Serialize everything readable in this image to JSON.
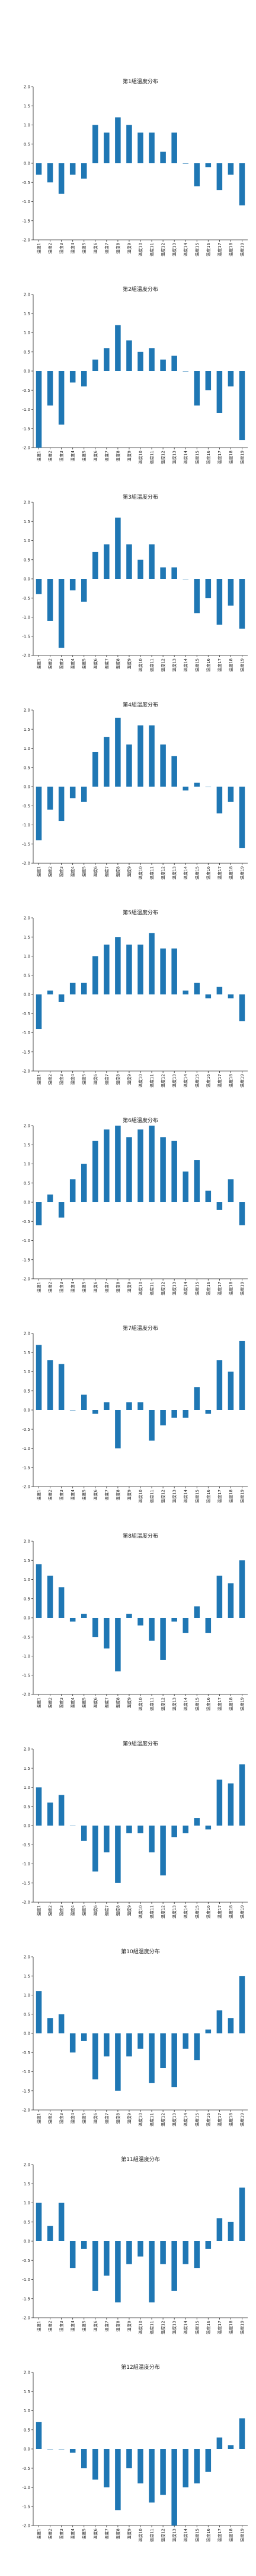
{
  "chart_data": [
    {
      "type": "bar",
      "title": "第1組温度分布",
      "categories": [
        "温度1",
        "温度2",
        "温度3",
        "温度4",
        "温度5",
        "温度6",
        "温度7",
        "温度8",
        "温度9",
        "温度10",
        "温度11",
        "温度12",
        "温度13",
        "温度14",
        "温度15",
        "温度16",
        "温度17",
        "温度18",
        "温度19"
      ],
      "values": [
        -0.3,
        -0.5,
        -0.8,
        -0.3,
        -0.4,
        1.0,
        0.8,
        1.2,
        1.0,
        0.8,
        0.8,
        0.3,
        0.8,
        0.0,
        -0.6,
        -0.1,
        -0.7,
        -0.3,
        -1.1
      ],
      "ylim": [
        -2.0,
        2.0
      ],
      "yticks": [
        -2.0,
        -1.5,
        -1.0,
        -0.5,
        0.0,
        0.5,
        1.0,
        1.5,
        2.0
      ],
      "color": "#1f77b4"
    },
    {
      "type": "bar",
      "title": "第2組温度分布",
      "categories": [
        "温度1",
        "温度2",
        "温度3",
        "温度4",
        "温度5",
        "温度6",
        "温度7",
        "温度8",
        "温度9",
        "温度10",
        "温度11",
        "温度12",
        "温度13",
        "温度14",
        "温度15",
        "温度16",
        "温度17",
        "温度18",
        "温度19"
      ],
      "values": [
        -2.0,
        -0.9,
        -1.4,
        -0.3,
        -0.4,
        0.3,
        0.6,
        1.2,
        0.8,
        0.5,
        0.6,
        0.3,
        0.4,
        0.0,
        -0.9,
        -0.5,
        -1.1,
        -0.4,
        -1.8
      ],
      "ylim": [
        -2.0,
        2.0
      ],
      "yticks": [
        -2.0,
        -1.5,
        -1.0,
        -0.5,
        0.0,
        0.5,
        1.0,
        1.5,
        2.0
      ],
      "color": "#1f77b4"
    },
    {
      "type": "bar",
      "title": "第3組温度分布",
      "categories": [
        "温度1",
        "温度2",
        "温度3",
        "温度4",
        "温度5",
        "温度6",
        "温度7",
        "温度8",
        "温度9",
        "温度10",
        "温度11",
        "温度12",
        "温度13",
        "温度14",
        "温度15",
        "温度16",
        "温度17",
        "温度18",
        "温度19"
      ],
      "values": [
        -0.4,
        -1.1,
        -1.8,
        -0.3,
        -0.6,
        0.7,
        0.9,
        1.6,
        0.9,
        0.5,
        0.9,
        0.3,
        0.3,
        0.0,
        -0.9,
        -0.5,
        -1.2,
        -0.7,
        -1.3
      ],
      "ylim": [
        -2.0,
        2.0
      ],
      "yticks": [
        -2.0,
        -1.5,
        -1.0,
        -0.5,
        0.0,
        0.5,
        1.0,
        1.5,
        2.0
      ],
      "color": "#1f77b4"
    },
    {
      "type": "bar",
      "title": "第4組温度分布",
      "categories": [
        "温度1",
        "温度2",
        "温度3",
        "温度4",
        "温度5",
        "温度6",
        "温度7",
        "温度8",
        "温度9",
        "温度10",
        "温度11",
        "温度12",
        "温度13",
        "温度14",
        "温度15",
        "温度16",
        "温度17",
        "温度18",
        "温度19"
      ],
      "values": [
        -1.4,
        -0.6,
        -0.9,
        -0.3,
        -0.4,
        0.9,
        1.3,
        1.8,
        1.1,
        1.6,
        1.6,
        1.1,
        0.8,
        -0.1,
        0.1,
        0.0,
        -0.7,
        -0.4,
        -1.6
      ],
      "ylim": [
        -2.0,
        2.0
      ],
      "yticks": [
        -2.0,
        -1.5,
        -1.0,
        -0.5,
        0.0,
        0.5,
        1.0,
        1.5,
        2.0
      ],
      "color": "#1f77b4"
    },
    {
      "type": "bar",
      "title": "第5組温度分布",
      "categories": [
        "温度1",
        "温度2",
        "温度3",
        "温度4",
        "温度5",
        "温度6",
        "温度7",
        "温度8",
        "温度9",
        "温度10",
        "温度11",
        "温度12",
        "温度13",
        "温度14",
        "温度15",
        "温度16",
        "温度17",
        "温度18",
        "温度19"
      ],
      "values": [
        -0.9,
        0.1,
        -0.2,
        0.3,
        0.3,
        1.0,
        1.3,
        1.5,
        1.3,
        1.3,
        1.6,
        1.2,
        1.2,
        0.1,
        0.3,
        -0.1,
        0.2,
        -0.1,
        -0.7
      ],
      "ylim": [
        -2.0,
        2.0
      ],
      "yticks": [
        -2.0,
        -1.5,
        -1.0,
        -0.5,
        0.0,
        0.5,
        1.0,
        1.5,
        2.0
      ],
      "color": "#1f77b4"
    },
    {
      "type": "bar",
      "title": "第6組温度分布",
      "categories": [
        "温度1",
        "温度2",
        "温度3",
        "温度4",
        "温度5",
        "温度6",
        "温度7",
        "温度8",
        "温度9",
        "温度10",
        "温度11",
        "温度12",
        "温度13",
        "温度14",
        "温度15",
        "温度16",
        "温度17",
        "温度18",
        "温度19"
      ],
      "values": [
        -0.6,
        0.2,
        -0.4,
        0.6,
        1.0,
        1.6,
        1.9,
        2.0,
        1.7,
        1.9,
        2.0,
        1.7,
        1.6,
        0.8,
        1.1,
        0.3,
        -0.2,
        0.6,
        -0.6
      ],
      "ylim": [
        -2.0,
        2.0
      ],
      "yticks": [
        -2.0,
        -1.5,
        -1.0,
        -0.5,
        0.0,
        0.5,
        1.0,
        1.5,
        2.0
      ],
      "color": "#1f77b4"
    },
    {
      "type": "bar",
      "title": "第7組温度分布",
      "categories": [
        "温度1",
        "温度2",
        "温度3",
        "温度4",
        "温度5",
        "温度6",
        "温度7",
        "温度8",
        "温度9",
        "温度10",
        "温度11",
        "温度12",
        "温度13",
        "温度14",
        "温度15",
        "温度16",
        "温度17",
        "温度18",
        "温度19"
      ],
      "values": [
        1.7,
        1.3,
        1.2,
        0.0,
        0.4,
        -0.1,
        0.2,
        -1.0,
        0.2,
        0.2,
        -0.8,
        -0.4,
        -0.2,
        -0.2,
        0.6,
        -0.1,
        1.3,
        1.0,
        1.8
      ],
      "ylim": [
        -2.0,
        2.0
      ],
      "yticks": [
        -2.0,
        -1.5,
        -1.0,
        -0.5,
        0.0,
        0.5,
        1.0,
        1.5,
        2.0
      ],
      "color": "#1f77b4"
    },
    {
      "type": "bar",
      "title": "第8組温度分布",
      "categories": [
        "温度1",
        "温度2",
        "温度3",
        "温度4",
        "温度5",
        "温度6",
        "温度7",
        "温度8",
        "温度9",
        "温度10",
        "温度11",
        "温度12",
        "温度13",
        "温度14",
        "温度15",
        "温度16",
        "温度17",
        "温度18",
        "温度19"
      ],
      "values": [
        1.4,
        1.1,
        0.8,
        -0.1,
        0.1,
        -0.5,
        -0.8,
        -1.4,
        0.1,
        -0.2,
        -0.6,
        -1.1,
        -0.1,
        -0.4,
        0.3,
        -0.4,
        1.1,
        0.9,
        1.5
      ],
      "ylim": [
        -2.0,
        2.0
      ],
      "yticks": [
        -2.0,
        -1.5,
        -1.0,
        -0.5,
        0.0,
        0.5,
        1.0,
        1.5,
        2.0
      ],
      "color": "#1f77b4"
    },
    {
      "type": "bar",
      "title": "第9組温度分布",
      "categories": [
        "温度1",
        "温度2",
        "温度3",
        "温度4",
        "温度5",
        "温度6",
        "温度7",
        "温度8",
        "温度9",
        "温度10",
        "温度11",
        "温度12",
        "温度13",
        "温度14",
        "温度15",
        "温度16",
        "温度17",
        "温度18",
        "温度19"
      ],
      "values": [
        1.0,
        0.6,
        0.8,
        0.0,
        -0.4,
        -1.2,
        -0.7,
        -1.5,
        -0.2,
        -0.2,
        -0.7,
        -1.3,
        -0.3,
        -0.2,
        0.2,
        -0.1,
        1.2,
        1.1,
        1.6
      ],
      "ylim": [
        -2.0,
        2.0
      ],
      "yticks": [
        -2.0,
        -1.5,
        -1.0,
        -0.5,
        0.0,
        0.5,
        1.0,
        1.5,
        2.0
      ],
      "color": "#1f77b4"
    },
    {
      "type": "bar",
      "title": "第10組温度分布",
      "categories": [
        "温度1",
        "温度2",
        "温度3",
        "温度4",
        "温度5",
        "温度6",
        "温度7",
        "温度8",
        "温度9",
        "温度10",
        "温度11",
        "温度12",
        "温度13",
        "温度14",
        "温度15",
        "温度16",
        "温度17",
        "温度18",
        "温度19"
      ],
      "values": [
        1.1,
        0.4,
        0.5,
        -0.5,
        -0.2,
        -1.2,
        -0.6,
        -1.5,
        -0.6,
        -0.4,
        -1.3,
        -0.9,
        -1.4,
        -0.4,
        -0.7,
        0.1,
        0.6,
        0.4,
        1.5
      ],
      "ylim": [
        -2.0,
        2.0
      ],
      "yticks": [
        -2.0,
        -1.5,
        -1.0,
        -0.5,
        0.0,
        0.5,
        1.0,
        1.5,
        2.0
      ],
      "color": "#1f77b4"
    },
    {
      "type": "bar",
      "title": "第11組温度分布",
      "categories": [
        "温度1",
        "温度2",
        "温度3",
        "温度4",
        "温度5",
        "温度6",
        "温度7",
        "温度8",
        "温度9",
        "温度10",
        "温度11",
        "温度12",
        "温度13",
        "温度14",
        "温度15",
        "温度16",
        "温度17",
        "温度18",
        "温度19"
      ],
      "values": [
        1.0,
        0.4,
        1.0,
        -0.7,
        -0.2,
        -1.3,
        -0.9,
        -1.6,
        -0.6,
        -0.4,
        -1.6,
        -0.6,
        -1.3,
        -0.6,
        -0.7,
        -0.2,
        0.6,
        0.5,
        1.4
      ],
      "ylim": [
        -2.0,
        2.0
      ],
      "yticks": [
        -2.0,
        -1.5,
        -1.0,
        -0.5,
        0.0,
        0.5,
        1.0,
        1.5,
        2.0
      ],
      "color": "#1f77b4"
    },
    {
      "type": "bar",
      "title": "第12組温度分布",
      "categories": [
        "温度1",
        "温度2",
        "温度3",
        "温度4",
        "温度5",
        "温度6",
        "温度7",
        "温度8",
        "温度9",
        "温度10",
        "温度11",
        "温度12",
        "温度13",
        "温度14",
        "温度15",
        "温度16",
        "温度17",
        "温度18",
        "温度19"
      ],
      "values": [
        0.7,
        0.0,
        0.0,
        -0.1,
        -0.5,
        -0.8,
        -1.0,
        -1.6,
        -0.5,
        -0.9,
        -1.4,
        -1.2,
        -2.0,
        -1.0,
        -0.9,
        -0.6,
        0.3,
        0.1,
        0.8
      ],
      "ylim": [
        -2.0,
        2.0
      ],
      "yticks": [
        -2.0,
        -1.5,
        -1.0,
        -0.5,
        0.0,
        0.5,
        1.0,
        1.5,
        2.0
      ],
      "color": "#1f77b4"
    }
  ]
}
